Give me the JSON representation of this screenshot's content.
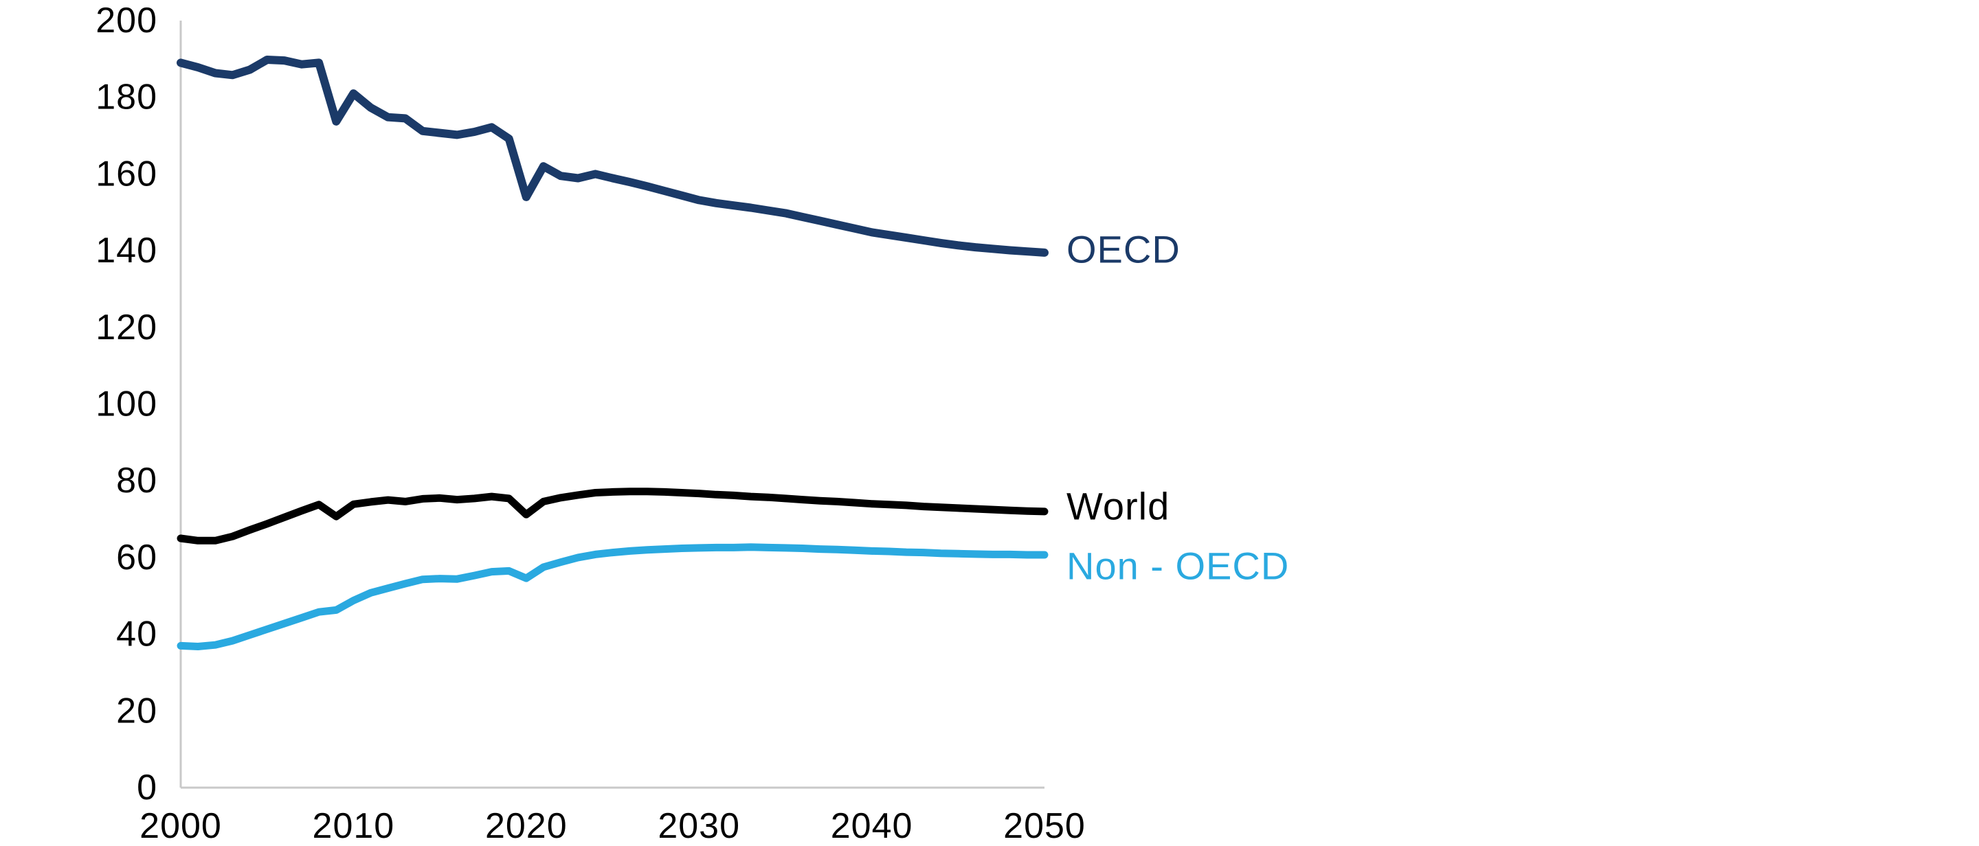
{
  "chart_data": {
    "type": "line",
    "title": "",
    "xlabel": "",
    "ylabel": "",
    "grid": false,
    "legend_position": "end-of-line-labels",
    "axis_color": "#c9c9c9",
    "tick_label_color": "#000000",
    "background_color": "#ffffff",
    "xlim": [
      2000,
      2050
    ],
    "ylim": [
      0,
      200
    ],
    "xticks": [
      2000,
      2010,
      2020,
      2030,
      2040,
      2050
    ],
    "yticks": [
      0,
      20,
      40,
      60,
      80,
      100,
      120,
      140,
      160,
      180,
      200
    ],
    "x": [
      2000,
      2001,
      2002,
      2003,
      2004,
      2005,
      2006,
      2007,
      2008,
      2009,
      2010,
      2011,
      2012,
      2013,
      2014,
      2015,
      2016,
      2017,
      2018,
      2019,
      2020,
      2021,
      2022,
      2023,
      2024,
      2025,
      2026,
      2027,
      2028,
      2029,
      2030,
      2031,
      2032,
      2033,
      2034,
      2035,
      2036,
      2037,
      2038,
      2039,
      2040,
      2041,
      2042,
      2043,
      2044,
      2045,
      2046,
      2047,
      2048,
      2049,
      2050
    ],
    "series": [
      {
        "name": "OECD",
        "color": "#1b3a68",
        "stroke_width": 12,
        "values": [
          189.0,
          187.8,
          186.3,
          185.8,
          187.2,
          189.8,
          189.6,
          188.6,
          189.0,
          173.7,
          181.0,
          177.3,
          174.8,
          174.5,
          171.2,
          170.7,
          170.2,
          171.0,
          172.2,
          169.2,
          154.0,
          162.0,
          159.5,
          158.9,
          160.0,
          158.9,
          157.9,
          156.8,
          155.6,
          154.4,
          153.2,
          152.4,
          151.8,
          151.2,
          150.5,
          149.8,
          148.8,
          147.8,
          146.8,
          145.8,
          144.8,
          144.1,
          143.4,
          142.7,
          142.0,
          141.4,
          140.9,
          140.5,
          140.1,
          139.8,
          139.5
        ]
      },
      {
        "name": "World",
        "color": "#000000",
        "stroke_width": 11,
        "values": [
          65.0,
          64.4,
          64.4,
          65.5,
          67.2,
          68.8,
          70.5,
          72.2,
          73.8,
          70.7,
          73.9,
          74.5,
          75.0,
          74.6,
          75.3,
          75.5,
          75.1,
          75.4,
          75.9,
          75.4,
          71.2,
          74.6,
          75.6,
          76.3,
          76.9,
          77.1,
          77.2,
          77.2,
          77.1,
          76.9,
          76.7,
          76.4,
          76.2,
          75.9,
          75.7,
          75.4,
          75.1,
          74.8,
          74.6,
          74.3,
          74.0,
          73.8,
          73.6,
          73.3,
          73.1,
          72.9,
          72.7,
          72.5,
          72.3,
          72.1,
          72.0
        ]
      },
      {
        "name": "Non - OECD",
        "color": "#2aa9e0",
        "stroke_width": 11,
        "values": [
          37.0,
          36.8,
          37.2,
          38.3,
          39.8,
          41.3,
          42.8,
          44.3,
          45.8,
          46.3,
          48.8,
          50.8,
          52.0,
          53.2,
          54.3,
          54.5,
          54.4,
          55.3,
          56.3,
          56.5,
          54.6,
          57.5,
          58.8,
          60.0,
          60.8,
          61.3,
          61.7,
          62.0,
          62.2,
          62.4,
          62.5,
          62.6,
          62.6,
          62.7,
          62.6,
          62.5,
          62.4,
          62.2,
          62.1,
          61.9,
          61.7,
          61.6,
          61.4,
          61.3,
          61.1,
          61.0,
          60.9,
          60.8,
          60.8,
          60.7,
          60.7
        ]
      }
    ]
  }
}
